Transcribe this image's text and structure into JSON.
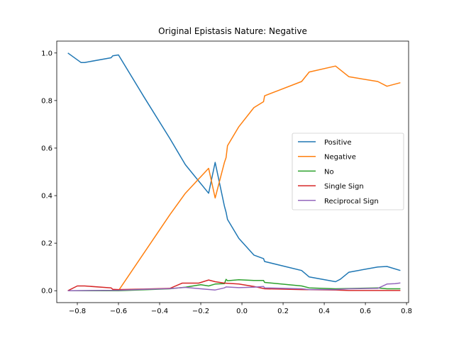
{
  "chart_data": {
    "type": "line",
    "title": "Original Epistasis Nature: Negative",
    "xlabel": "",
    "ylabel": "",
    "xlim": [
      -0.9,
      0.81
    ],
    "ylim": [
      -0.05,
      1.05
    ],
    "xticks": [
      -0.8,
      -0.6,
      -0.4,
      -0.2,
      0.0,
      0.2,
      0.4,
      0.6,
      0.8
    ],
    "xtick_labels": [
      "−0.8",
      "−0.6",
      "−0.4",
      "−0.2",
      "0.0",
      "0.2",
      "0.4",
      "0.6",
      "0.8"
    ],
    "yticks": [
      0.0,
      0.2,
      0.4,
      0.6,
      0.8,
      1.0
    ],
    "ytick_labels": [
      "0.0",
      "0.2",
      "0.4",
      "0.6",
      "0.8",
      "1.0"
    ],
    "grid": false,
    "legend_position": "center-right",
    "series": [
      {
        "name": "Positive",
        "color": "#1f77b4",
        "x": [
          -0.846,
          -0.782,
          -0.765,
          -0.636,
          -0.628,
          -0.6,
          -0.476,
          -0.35,
          -0.275,
          -0.162,
          -0.13,
          -0.085,
          -0.077,
          -0.07,
          -0.015,
          0.058,
          0.105,
          0.11,
          0.29,
          0.327,
          0.455,
          0.478,
          0.52,
          0.66,
          0.705,
          0.77
        ],
        "y": [
          1.0,
          0.96,
          0.96,
          0.98,
          0.988,
          0.992,
          0.815,
          0.64,
          0.53,
          0.41,
          0.54,
          0.355,
          0.33,
          0.3,
          0.22,
          0.15,
          0.135,
          0.123,
          0.085,
          0.058,
          0.038,
          0.048,
          0.078,
          0.1,
          0.102,
          0.085
        ]
      },
      {
        "name": "Negative",
        "color": "#ff7f0e",
        "x": [
          -0.846,
          -0.6,
          -0.35,
          -0.275,
          -0.162,
          -0.13,
          -0.085,
          -0.077,
          -0.07,
          -0.015,
          0.058,
          0.105,
          0.11,
          0.29,
          0.327,
          0.455,
          0.52,
          0.66,
          0.705,
          0.77
        ],
        "y": [
          0.0,
          0.0,
          0.32,
          0.41,
          0.515,
          0.39,
          0.54,
          0.56,
          0.61,
          0.69,
          0.77,
          0.795,
          0.82,
          0.88,
          0.92,
          0.945,
          0.9,
          0.88,
          0.86,
          0.875
        ]
      },
      {
        "name": "No",
        "color": "#2ca02c",
        "x": [
          -0.846,
          -0.6,
          -0.35,
          -0.275,
          -0.2,
          -0.162,
          -0.13,
          -0.085,
          -0.077,
          -0.07,
          -0.015,
          0.058,
          0.105,
          0.11,
          0.29,
          0.327,
          0.455,
          0.66,
          0.705,
          0.77
        ],
        "y": [
          0.0,
          0.0,
          0.008,
          0.015,
          0.025,
          0.02,
          0.028,
          0.03,
          0.048,
          0.042,
          0.046,
          0.043,
          0.043,
          0.035,
          0.02,
          0.012,
          0.008,
          0.012,
          0.008,
          0.008
        ]
      },
      {
        "name": "Single Sign",
        "color": "#d62728",
        "x": [
          -0.846,
          -0.8,
          -0.765,
          -0.636,
          -0.628,
          -0.6,
          -0.476,
          -0.35,
          -0.29,
          -0.21,
          -0.162,
          -0.13,
          -0.085,
          -0.015,
          0.058,
          0.11,
          0.29,
          0.455,
          0.52,
          0.66,
          0.705,
          0.77
        ],
        "y": [
          0.0,
          0.02,
          0.02,
          0.012,
          0.006,
          0.005,
          0.007,
          0.01,
          0.032,
          0.032,
          0.045,
          0.038,
          0.032,
          0.028,
          0.018,
          0.008,
          0.005,
          0.003,
          0.001,
          0.001,
          0.001,
          0.001
        ]
      },
      {
        "name": "Reciprocal Sign",
        "color": "#9467bd",
        "x": [
          -0.846,
          -0.6,
          -0.475,
          -0.35,
          -0.275,
          -0.2,
          -0.13,
          -0.085,
          -0.077,
          -0.015,
          0.058,
          0.105,
          0.11,
          0.29,
          0.327,
          0.455,
          0.52,
          0.66,
          0.705,
          0.745,
          0.77
        ],
        "y": [
          0.0,
          0.002,
          0.006,
          0.009,
          0.014,
          0.008,
          0.003,
          0.012,
          0.016,
          0.013,
          0.015,
          0.018,
          0.012,
          0.008,
          0.005,
          0.005,
          0.008,
          0.01,
          0.028,
          0.03,
          0.033
        ]
      }
    ]
  }
}
